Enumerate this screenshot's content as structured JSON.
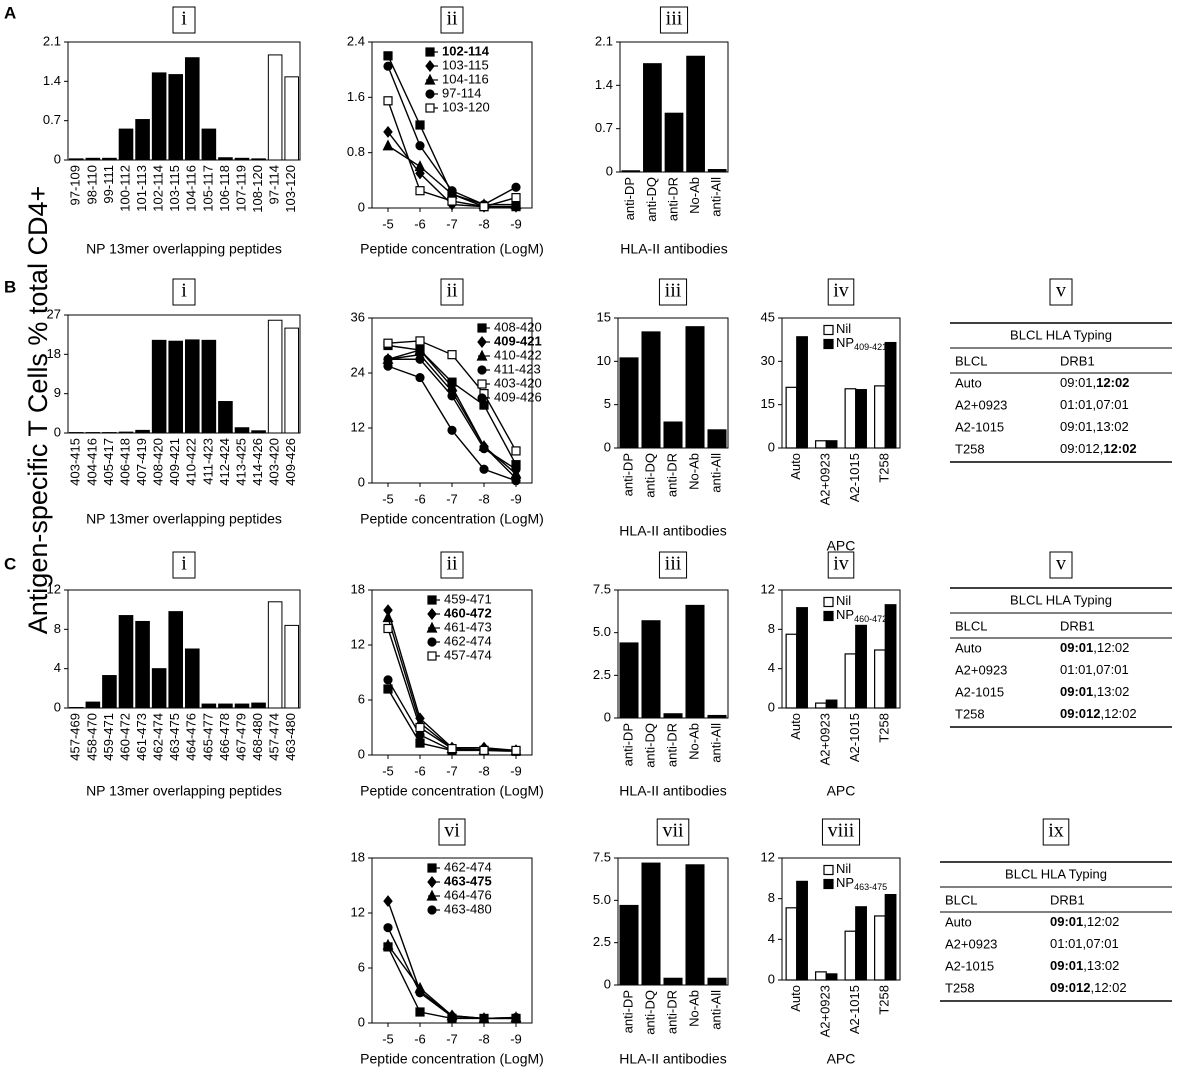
{
  "y_axis_label": "Antigen-specific T Cells % total CD4+",
  "row_labels": [
    "A",
    "B",
    "C"
  ],
  "chart_data": [
    {
      "panel": "i",
      "type": "bar",
      "xlabel": "NP 13mer overlapping peptides",
      "categories": [
        "97-109",
        "98-110",
        "99-111",
        "100-112",
        "101-113",
        "102-114",
        "103-115",
        "104-116",
        "105-117",
        "106-118",
        "107-119",
        "108-120",
        "97-114",
        "103-120"
      ],
      "values": [
        0.02,
        0.03,
        0.03,
        0.55,
        0.72,
        1.55,
        1.52,
        1.82,
        0.55,
        0.04,
        0.03,
        0.02,
        1.87,
        1.48
      ],
      "colors": [
        "#000000",
        "#000000",
        "#000000",
        "#000000",
        "#000000",
        "#000000",
        "#000000",
        "#000000",
        "#000000",
        "#000000",
        "#000000",
        "#000000",
        "#ffffff",
        "#ffffff"
      ],
      "ylim": [
        0,
        2.1
      ],
      "yticks": [
        0,
        0.7,
        1.4,
        2.1
      ]
    },
    {
      "panel": "ii",
      "type": "line",
      "xlabel": "Peptide concentration (LogM)",
      "x": [
        -5,
        -6,
        -7,
        -8,
        -9
      ],
      "xlim": [
        -4.5,
        -9.5
      ],
      "xticks": [
        -5,
        -6,
        -7,
        -8,
        -9
      ],
      "ylim": [
        0,
        2.4
      ],
      "yticks": [
        0,
        0.8,
        1.6,
        2.4
      ],
      "legend": "upper right",
      "series": [
        {
          "name": "102-114",
          "bold": true,
          "marker": "square",
          "color": "#000000",
          "values": [
            2.2,
            1.2,
            0.2,
            0.02,
            0.02
          ]
        },
        {
          "name": "103-115",
          "marker": "diamond",
          "color": "#000000",
          "values": [
            1.1,
            0.5,
            0.05,
            0.02,
            0.02
          ]
        },
        {
          "name": "104-116",
          "marker": "triangle",
          "color": "#000000",
          "values": [
            0.9,
            0.6,
            0.2,
            0.05,
            0.05
          ]
        },
        {
          "name": "97-114",
          "marker": "circle",
          "color": "#000000",
          "values": [
            2.05,
            0.9,
            0.25,
            0.05,
            0.3
          ]
        },
        {
          "name": "103-120",
          "marker": "open-square",
          "color": "#000000",
          "values": [
            1.55,
            0.25,
            0.1,
            0.02,
            0.15
          ]
        }
      ]
    },
    {
      "panel": "iii",
      "type": "bar",
      "xlabel": "HLA-II antibodies",
      "categories": [
        "anti-DP",
        "anti-DQ",
        "anti-DR",
        "No-Ab",
        "anti-All"
      ],
      "values": [
        0.02,
        1.75,
        0.95,
        1.87,
        0.04
      ],
      "colors": [
        "#000000",
        "#000000",
        "#000000",
        "#000000",
        "#000000"
      ],
      "ylim": [
        0,
        2.1
      ],
      "yticks": [
        0,
        0.7,
        1.4,
        2.1
      ]
    },
    {
      "panel": "i",
      "type": "bar",
      "xlabel": "NP 13mer overlapping peptides",
      "categories": [
        "403-415",
        "404-416",
        "405-417",
        "406-418",
        "407-419",
        "408-420",
        "409-421",
        "410-422",
        "411-423",
        "412-424",
        "413-425",
        "414-426",
        "403-420",
        "409-426"
      ],
      "values": [
        0.1,
        0.1,
        0.1,
        0.2,
        0.6,
        21.2,
        21,
        21.3,
        21.2,
        7.2,
        1.2,
        0.5,
        25.8,
        24
      ],
      "colors": [
        "#000000",
        "#000000",
        "#000000",
        "#000000",
        "#000000",
        "#000000",
        "#000000",
        "#000000",
        "#000000",
        "#000000",
        "#000000",
        "#000000",
        "#ffffff",
        "#ffffff"
      ],
      "ylim": [
        0,
        27
      ],
      "yticks": [
        0,
        9,
        18,
        27
      ]
    },
    {
      "panel": "ii",
      "type": "line",
      "xlabel": "Peptide concentration (LogM)",
      "x": [
        -5,
        -6,
        -7,
        -8,
        -9
      ],
      "xlim": [
        -4.5,
        -9.5
      ],
      "xticks": [
        -5,
        -6,
        -7,
        -8,
        -9
      ],
      "ylim": [
        0,
        36
      ],
      "yticks": [
        0,
        12,
        24,
        36
      ],
      "legend": "upper right",
      "series": [
        {
          "name": "408-420",
          "marker": "square",
          "color": "#000000",
          "values": [
            30,
            29,
            22,
            17,
            4
          ]
        },
        {
          "name": "409-421",
          "bold": true,
          "marker": "diamond",
          "color": "#000000",
          "values": [
            27,
            28,
            20,
            8,
            1
          ]
        },
        {
          "name": "410-422",
          "marker": "triangle",
          "color": "#000000",
          "values": [
            27,
            29,
            21,
            8,
            2
          ]
        },
        {
          "name": "411-423",
          "marker": "circle",
          "color": "#000000",
          "values": [
            25.5,
            23,
            11.5,
            3,
            0.5
          ]
        },
        {
          "name": "403-420",
          "marker": "open-square",
          "color": "#000000",
          "values": [
            30.5,
            31,
            28,
            19.5,
            7
          ]
        },
        {
          "name": "409-426",
          "marker": "circle",
          "color": "#000000",
          "values": [
            27,
            27,
            19,
            7.5,
            3
          ]
        }
      ]
    },
    {
      "panel": "iii",
      "type": "bar",
      "xlabel": "HLA-II antibodies",
      "categories": [
        "anti-DP",
        "anti-DQ",
        "anti-DR",
        "No-Ab",
        "anti-All"
      ],
      "values": [
        10.4,
        13.4,
        3,
        14,
        2.1
      ],
      "colors": [
        "#000000",
        "#000000",
        "#000000",
        "#000000",
        "#000000"
      ],
      "ylim": [
        0,
        15
      ],
      "yticks": [
        0,
        5,
        10,
        15
      ]
    },
    {
      "panel": "iv",
      "type": "grouped_bar",
      "xlabel": "APC",
      "categories": [
        "Auto",
        "A2+0923",
        "A2-1015",
        "T258"
      ],
      "ylim": [
        0,
        45
      ],
      "yticks": [
        0,
        15,
        30,
        45
      ],
      "legend": "upper left",
      "series": [
        {
          "name": "Nil",
          "color": "#ffffff",
          "values": [
            21,
            2.5,
            20.5,
            21.5
          ]
        },
        {
          "name": "NP",
          "subscript": "409-421",
          "color": "#000000",
          "values": [
            38.5,
            2.5,
            20.2,
            36.5
          ]
        }
      ]
    },
    {
      "panel": "i",
      "type": "bar",
      "xlabel": "NP 13mer overlapping peptides",
      "categories": [
        "457-469",
        "458-470",
        "459-471",
        "460-472",
        "461-473",
        "462-474",
        "463-475",
        "464-476",
        "465-477",
        "466-478",
        "467-479",
        "468-480",
        "457-474",
        "463-480"
      ],
      "values": [
        0.05,
        0.6,
        3.3,
        9.4,
        8.8,
        4,
        9.8,
        6,
        0.4,
        0.4,
        0.4,
        0.5,
        10.8,
        8.4
      ],
      "colors": [
        "#000000",
        "#000000",
        "#000000",
        "#000000",
        "#000000",
        "#000000",
        "#000000",
        "#000000",
        "#000000",
        "#000000",
        "#000000",
        "#000000",
        "#ffffff",
        "#ffffff"
      ],
      "ylim": [
        0,
        12
      ],
      "yticks": [
        0,
        4,
        8,
        12
      ]
    },
    {
      "panel": "ii",
      "type": "line",
      "xlabel": "Peptide concentration (LogM)",
      "x": [
        -5,
        -6,
        -7,
        -8,
        -9
      ],
      "xlim": [
        -4.5,
        -9.5
      ],
      "xticks": [
        -5,
        -6,
        -7,
        -8,
        -9
      ],
      "ylim": [
        0,
        18
      ],
      "yticks": [
        0,
        6,
        12,
        18
      ],
      "legend": "upper right",
      "series": [
        {
          "name": "459-471",
          "marker": "square",
          "color": "#000000",
          "values": [
            7.2,
            1.3,
            0.5,
            0.5,
            0.4
          ]
        },
        {
          "name": "460-472",
          "bold": true,
          "marker": "diamond",
          "color": "#000000",
          "values": [
            15.8,
            4,
            0.8,
            0.8,
            0.5
          ]
        },
        {
          "name": "461-473",
          "marker": "triangle",
          "color": "#000000",
          "values": [
            15,
            3.5,
            0.7,
            0.6,
            0.5
          ]
        },
        {
          "name": "462-474",
          "marker": "circle",
          "color": "#000000",
          "values": [
            8.2,
            2.2,
            0.5,
            0.6,
            0.5
          ]
        },
        {
          "name": "457-474",
          "marker": "open-square",
          "color": "#000000",
          "values": [
            13.8,
            3,
            0.7,
            0.5,
            0.5
          ]
        }
      ]
    },
    {
      "panel": "iii",
      "type": "bar",
      "xlabel": "HLA-II antibodies",
      "categories": [
        "anti-DP",
        "anti-DQ",
        "anti-DR",
        "No-Ab",
        "anti-All"
      ],
      "values": [
        4.4,
        5.7,
        0.25,
        6.6,
        0.15
      ],
      "colors": [
        "#000000",
        "#000000",
        "#000000",
        "#000000",
        "#000000"
      ],
      "ylim": [
        0,
        7.5
      ],
      "yticks": [
        0,
        2.5,
        {
          "value": 5,
          "label": "5.0"
        },
        7.5
      ]
    },
    {
      "panel": "iv",
      "type": "grouped_bar",
      "xlabel": "APC",
      "categories": [
        "Auto",
        "A2+0923",
        "A2-1015",
        "T258"
      ],
      "ylim": [
        0,
        12
      ],
      "yticks": [
        0,
        4,
        8,
        12
      ],
      "legend": "upper left",
      "series": [
        {
          "name": "Nil",
          "color": "#ffffff",
          "values": [
            7.5,
            0.5,
            5.5,
            5.9
          ]
        },
        {
          "name": "NP",
          "subscript": "460-472",
          "color": "#000000",
          "values": [
            10.2,
            0.8,
            8.4,
            10.5
          ]
        }
      ]
    },
    {
      "panel": "vi",
      "type": "line",
      "xlabel": "Peptide concentration (LogM)",
      "x": [
        -5,
        -6,
        -7,
        -8,
        -9
      ],
      "xlim": [
        -4.5,
        -9.5
      ],
      "xticks": [
        -5,
        -6,
        -7,
        -8,
        -9
      ],
      "ylim": [
        0,
        18
      ],
      "yticks": [
        0,
        6,
        12,
        18
      ],
      "legend": "upper right",
      "series": [
        {
          "name": "462-474",
          "marker": "square",
          "color": "#000000",
          "values": [
            8.3,
            1.2,
            0.5,
            0.5,
            0.5
          ]
        },
        {
          "name": "463-475",
          "bold": true,
          "marker": "diamond",
          "color": "#000000",
          "values": [
            13.3,
            3.5,
            0.8,
            0.5,
            0.5
          ]
        },
        {
          "name": "464-476",
          "marker": "triangle",
          "color": "#000000",
          "values": [
            8.5,
            3.8,
            0.8,
            0.5,
            0.6
          ]
        },
        {
          "name": "463-480",
          "marker": "circle",
          "color": "#000000",
          "values": [
            10.4,
            3.3,
            0.7,
            0.5,
            0.6
          ]
        }
      ]
    },
    {
      "panel": "vii",
      "type": "bar",
      "xlabel": "HLA-II antibodies",
      "categories": [
        "anti-DP",
        "anti-DQ",
        "anti-DR",
        "No-Ab",
        "anti-All"
      ],
      "values": [
        4.7,
        7.2,
        0.4,
        7.1,
        0.4
      ],
      "colors": [
        "#000000",
        "#000000",
        "#000000",
        "#000000",
        "#000000"
      ],
      "ylim": [
        0,
        7.5
      ],
      "yticks": [
        0,
        2.5,
        {
          "value": 5,
          "label": "5.0"
        },
        7.5
      ]
    },
    {
      "panel": "viii",
      "type": "grouped_bar",
      "xlabel": "APC",
      "categories": [
        "Auto",
        "A2+0923",
        "A2-1015",
        "T258"
      ],
      "ylim": [
        0,
        12
      ],
      "yticks": [
        0,
        4,
        8,
        12
      ],
      "legend": "upper left",
      "series": [
        {
          "name": "Nil",
          "color": "#ffffff",
          "values": [
            7.1,
            0.8,
            4.8,
            6.3
          ]
        },
        {
          "name": "NP",
          "subscript": "463-475",
          "color": "#000000",
          "values": [
            9.7,
            0.6,
            7.2,
            8.4
          ]
        }
      ]
    }
  ],
  "tables": [
    {
      "panel": "v",
      "title": "BLCL HLA Typing",
      "header": [
        "BLCL",
        "DRB1"
      ],
      "rows": [
        {
          "blcl": "Auto",
          "drb1": [
            {
              "t": "09:01,"
            },
            {
              "t": "12:02",
              "b": true
            }
          ]
        },
        {
          "blcl": "A2+0923",
          "drb1": [
            {
              "t": "01:01,07:01"
            }
          ]
        },
        {
          "blcl": "A2-1015",
          "drb1": [
            {
              "t": "09:01,13:02"
            }
          ]
        },
        {
          "blcl": "T258",
          "drb1": [
            {
              "t": "09:012,"
            },
            {
              "t": "12:02",
              "b": true
            }
          ]
        }
      ]
    },
    {
      "panel": "v",
      "title": "BLCL HLA Typing",
      "header": [
        "BLCL",
        "DRB1"
      ],
      "rows": [
        {
          "blcl": "Auto",
          "drb1": [
            {
              "t": "09:01",
              "b": true
            },
            {
              "t": ",12:02"
            }
          ]
        },
        {
          "blcl": "A2+0923",
          "drb1": [
            {
              "t": "01:01,07:01"
            }
          ]
        },
        {
          "blcl": "A2-1015",
          "drb1": [
            {
              "t": "09:01",
              "b": true
            },
            {
              "t": ",13:02"
            }
          ]
        },
        {
          "blcl": "T258",
          "drb1": [
            {
              "t": "09:012",
              "b": true
            },
            {
              "t": ",12:02"
            }
          ]
        }
      ]
    },
    {
      "panel": "ix",
      "title": "BLCL HLA Typing",
      "header": [
        "BLCL",
        "DRB1"
      ],
      "rows": [
        {
          "blcl": "Auto",
          "drb1": [
            {
              "t": "09:01",
              "b": true
            },
            {
              "t": ",12:02"
            }
          ]
        },
        {
          "blcl": "A2+0923",
          "drb1": [
            {
              "t": "01:01,07:01"
            }
          ]
        },
        {
          "blcl": "A2-1015",
          "drb1": [
            {
              "t": "09:01",
              "b": true
            },
            {
              "t": ",13:02"
            }
          ]
        },
        {
          "blcl": "T258",
          "drb1": [
            {
              "t": "09:012",
              "b": true
            },
            {
              "t": ",12:02"
            }
          ]
        }
      ]
    }
  ]
}
